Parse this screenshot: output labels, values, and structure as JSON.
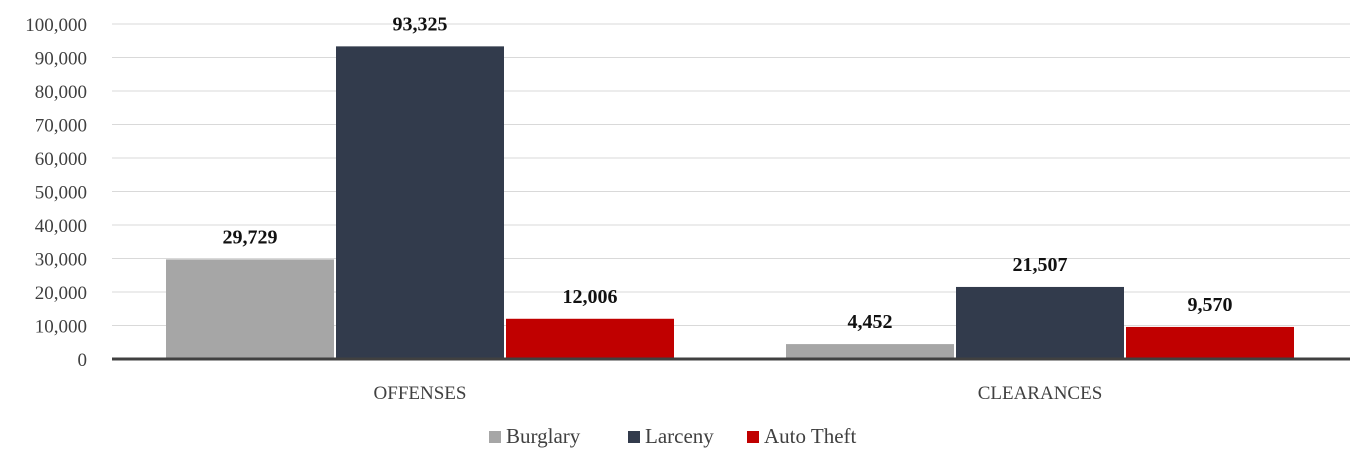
{
  "chart_data": {
    "type": "bar",
    "title": "",
    "xlabel": "",
    "ylabel": "",
    "categories": [
      "OFFENSES",
      "CLEARANCES"
    ],
    "series": [
      {
        "name": "Burglary",
        "color": "#a6a6a6",
        "values": [
          29729,
          4452
        ],
        "labels": [
          "29,729",
          "4,452"
        ]
      },
      {
        "name": "Larceny",
        "color": "#323b4c",
        "values": [
          93325,
          21507
        ],
        "labels": [
          "93,325",
          "21,507"
        ]
      },
      {
        "name": "Auto Theft",
        "color": "#c00000",
        "values": [
          12006,
          9570
        ],
        "labels": [
          "12,006",
          "9,570"
        ]
      }
    ],
    "ylim": [
      0,
      100000
    ],
    "yticks": [
      0,
      10000,
      20000,
      30000,
      40000,
      50000,
      60000,
      70000,
      80000,
      90000,
      100000
    ],
    "ytick_labels": [
      "0",
      "10,000",
      "20,000",
      "30,000",
      "40,000",
      "50,000",
      "60,000",
      "70,000",
      "80,000",
      "90,000",
      "100,000"
    ],
    "grid": true,
    "legend": "bottom"
  }
}
